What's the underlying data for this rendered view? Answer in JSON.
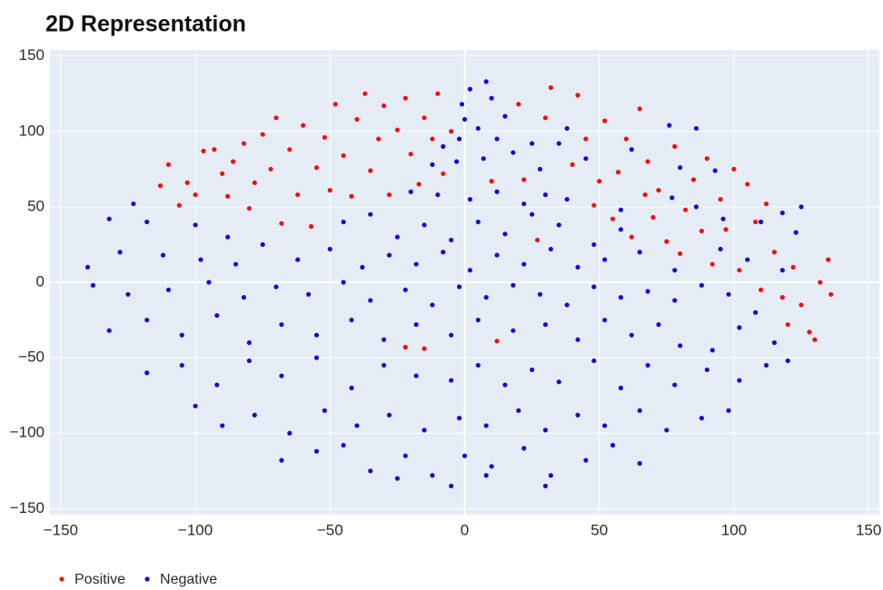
{
  "chart_data": {
    "type": "scatter",
    "title": "2D Representation",
    "xlim": [
      -154,
      154
    ],
    "ylim": [
      -154,
      154
    ],
    "xticks": [
      {
        "value": -150,
        "label": "−150"
      },
      {
        "value": -100,
        "label": "−100"
      },
      {
        "value": -50,
        "label": "−50"
      },
      0,
      50,
      100,
      150
    ],
    "yticks": [
      {
        "value": -150,
        "label": "−150"
      },
      {
        "value": -100,
        "label": "−100"
      },
      {
        "value": -50,
        "label": "−50"
      },
      0,
      50,
      100,
      150
    ],
    "grid": true,
    "series": [
      {
        "name": "Positive",
        "color": "#ee1111",
        "x": [
          -113,
          -110,
          -106,
          -103,
          -100,
          -97,
          -93,
          -90,
          -88,
          -86,
          -82,
          -80,
          -78,
          -75,
          -72,
          -70,
          -68,
          -65,
          -62,
          -60,
          -57,
          -55,
          -52,
          -50,
          -48,
          -45,
          -42,
          -40,
          -37,
          -35,
          -32,
          -30,
          -28,
          -25,
          -22,
          -20,
          -17,
          -15,
          -12,
          -10,
          -8,
          -5,
          10,
          20,
          22,
          27,
          30,
          32,
          40,
          42,
          45,
          48,
          50,
          52,
          55,
          57,
          60,
          62,
          65,
          67,
          68,
          70,
          72,
          75,
          78,
          80,
          82,
          85,
          88,
          90,
          92,
          95,
          97,
          100,
          102,
          105,
          108,
          110,
          112,
          115,
          118,
          120,
          122,
          125,
          128,
          130,
          132,
          135,
          136,
          -22,
          12,
          -15
        ],
        "y": [
          64,
          78,
          51,
          66,
          58,
          87,
          88,
          72,
          57,
          80,
          92,
          49,
          66,
          98,
          75,
          109,
          39,
          88,
          58,
          104,
          37,
          76,
          96,
          61,
          118,
          84,
          57,
          108,
          125,
          74,
          95,
          117,
          58,
          101,
          122,
          85,
          65,
          109,
          95,
          125,
          72,
          100,
          67,
          118,
          68,
          28,
          109,
          129,
          78,
          124,
          95,
          51,
          67,
          107,
          42,
          73,
          95,
          30,
          115,
          58,
          80,
          43,
          61,
          27,
          90,
          19,
          48,
          68,
          34,
          82,
          12,
          55,
          35,
          75,
          8,
          65,
          40,
          -5,
          52,
          20,
          -10,
          -28,
          10,
          -15,
          -33,
          -38,
          0,
          15,
          -8,
          -43,
          -39,
          -44
        ]
      },
      {
        "name": "Negative",
        "color": "#1010cc",
        "x": [
          2,
          8,
          -1,
          10,
          0,
          5,
          12,
          15,
          25,
          -8,
          -2,
          35,
          38,
          76,
          86,
          -3,
          7,
          18,
          28,
          45,
          62,
          80,
          93,
          -12,
          -123,
          -20,
          -10,
          2,
          12,
          22,
          30,
          38,
          58,
          77,
          86,
          96,
          118,
          125,
          -132,
          -118,
          -100,
          -88,
          -45,
          -35,
          -25,
          -15,
          -5,
          5,
          15,
          25,
          35,
          48,
          58,
          110,
          123,
          -140,
          -128,
          -112,
          -98,
          -85,
          -75,
          -62,
          -50,
          -38,
          -28,
          -18,
          -8,
          2,
          12,
          22,
          32,
          42,
          52,
          65,
          78,
          95,
          105,
          118,
          -138,
          -125,
          -110,
          -95,
          -82,
          -70,
          -58,
          -45,
          -35,
          -22,
          -12,
          -2,
          8,
          18,
          28,
          38,
          48,
          58,
          68,
          78,
          88,
          98,
          108,
          -132,
          -118,
          -105,
          -92,
          -80,
          -68,
          -55,
          -42,
          -30,
          -18,
          -5,
          5,
          18,
          30,
          42,
          52,
          62,
          72,
          80,
          92,
          102,
          115,
          120,
          -118,
          -105,
          -92,
          -80,
          -68,
          -55,
          -42,
          -30,
          -18,
          -5,
          5,
          15,
          25,
          35,
          48,
          58,
          68,
          78,
          90,
          102,
          112,
          -100,
          -90,
          -78,
          -65,
          -52,
          -40,
          -28,
          -15,
          -2,
          8,
          20,
          30,
          42,
          52,
          65,
          75,
          88,
          98,
          -68,
          -55,
          -45,
          -35,
          -22,
          -12,
          0,
          10,
          22,
          32,
          45,
          55,
          65,
          -25,
          -5,
          8,
          30
        ],
        "y": [
          128,
          133,
          118,
          122,
          108,
          102,
          95,
          110,
          92,
          90,
          95,
          92,
          102,
          104,
          102,
          80,
          82,
          86,
          75,
          82,
          88,
          76,
          74,
          78,
          52,
          60,
          58,
          55,
          60,
          52,
          58,
          55,
          48,
          56,
          50,
          42,
          46,
          50,
          42,
          40,
          38,
          30,
          40,
          45,
          30,
          38,
          28,
          40,
          32,
          45,
          38,
          25,
          35,
          40,
          33,
          10,
          20,
          18,
          15,
          12,
          25,
          15,
          22,
          10,
          18,
          12,
          20,
          8,
          18,
          12,
          22,
          10,
          15,
          20,
          8,
          22,
          15,
          8,
          -2,
          -8,
          -5,
          0,
          -10,
          -3,
          -8,
          0,
          -12,
          -5,
          -15,
          -3,
          -10,
          -2,
          -8,
          -15,
          -3,
          -10,
          -6,
          -12,
          -2,
          -8,
          -20,
          -32,
          -25,
          -35,
          -22,
          -40,
          -28,
          -35,
          -25,
          -38,
          -28,
          -35,
          -25,
          -32,
          -28,
          -38,
          -25,
          -35,
          -28,
          -42,
          -45,
          -30,
          -40,
          -52,
          -60,
          -55,
          -68,
          -52,
          -62,
          -50,
          -70,
          -55,
          -62,
          -65,
          -55,
          -68,
          -58,
          -66,
          -52,
          -70,
          -55,
          -68,
          -58,
          -65,
          -55,
          -82,
          -95,
          -88,
          -100,
          -85,
          -95,
          -88,
          -98,
          -90,
          -95,
          -85,
          -98,
          -88,
          -95,
          -85,
          -98,
          -90,
          -85,
          -118,
          -112,
          -108,
          -125,
          -115,
          -128,
          -115,
          -122,
          -110,
          -128,
          -118,
          -108,
          -120,
          -130,
          -135,
          -128,
          -135
        ]
      }
    ]
  }
}
